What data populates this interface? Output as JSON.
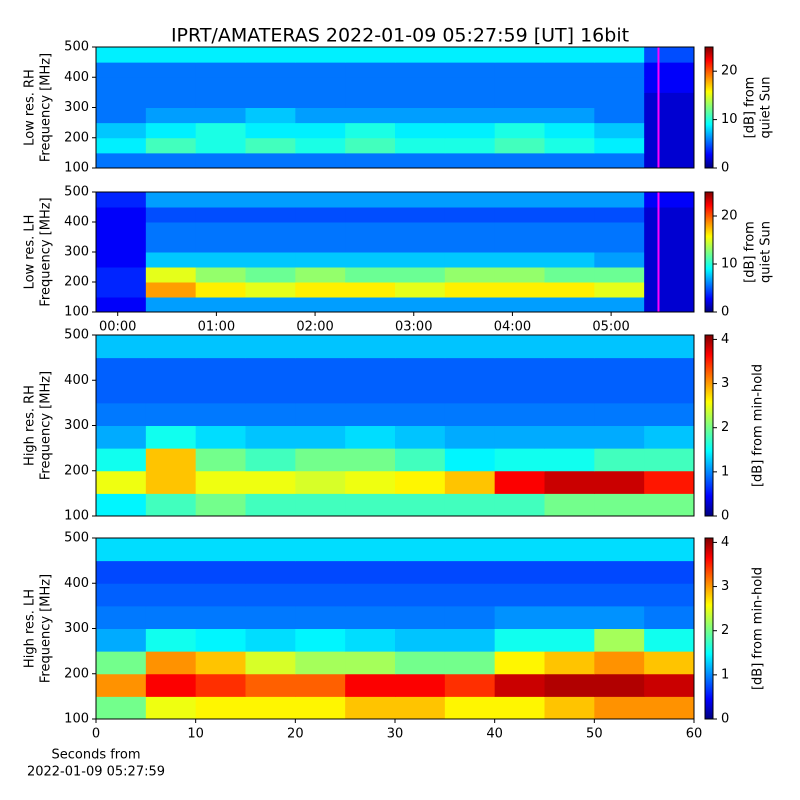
{
  "chart_data": [
    {
      "type": "heatmap",
      "title": "IPRT/AMATERAS 2022-01-09 05:27:59 [UT]   16bit",
      "ylabel": [
        "Low res. RH",
        "Frequency [MHz]"
      ],
      "colorbar_label": [
        "[dB] from",
        "quiet Sun"
      ],
      "colormap": "jet",
      "xlim": [
        -0.22,
        5.84
      ],
      "ylim": [
        100,
        500
      ],
      "yticks": [
        100,
        200,
        300,
        400,
        500
      ],
      "clim": [
        0,
        25
      ],
      "cticks": [
        0,
        10,
        20
      ],
      "vline": {
        "x": 5.48,
        "color": "#ff00ff"
      },
      "z": [
        [
          6,
          6,
          6,
          6,
          6,
          6,
          6,
          6,
          6,
          6,
          6,
          2
        ],
        [
          9,
          11,
          10,
          11,
          10,
          11,
          10,
          10,
          11,
          10,
          9,
          2
        ],
        [
          8,
          9,
          10,
          9,
          9,
          10,
          9,
          9,
          10,
          9,
          8,
          2
        ],
        [
          6,
          7,
          7,
          8,
          7,
          7,
          7,
          7,
          7,
          7,
          6,
          2
        ],
        [
          6,
          6,
          6,
          6,
          6,
          6,
          6,
          6,
          6,
          6,
          6,
          2
        ],
        [
          6,
          6,
          6,
          6,
          6,
          6,
          6,
          6,
          6,
          6,
          6,
          3
        ],
        [
          6,
          6,
          6,
          6,
          6,
          6,
          6,
          6,
          6,
          6,
          6,
          3
        ],
        [
          9,
          9,
          9,
          9,
          9,
          9,
          9,
          9,
          9,
          9,
          9,
          5
        ]
      ]
    },
    {
      "type": "heatmap",
      "ylabel": [
        "Low res. LH",
        "Frequency [MHz]"
      ],
      "colorbar_label": [
        "[dB] from",
        "quiet Sun"
      ],
      "colormap": "jet",
      "xlim": [
        -0.22,
        5.84
      ],
      "ylim": [
        100,
        500
      ],
      "yticks": [
        100,
        200,
        300,
        400,
        500
      ],
      "xticks": [
        {
          "value": 0,
          "label": "00:00"
        },
        {
          "value": 1,
          "label": "01:00"
        },
        {
          "value": 2,
          "label": "02:00"
        },
        {
          "value": 3,
          "label": "03:00"
        },
        {
          "value": 4,
          "label": "04:00"
        },
        {
          "value": 5,
          "label": "05:00"
        }
      ],
      "clim": [
        0,
        25
      ],
      "cticks": [
        0,
        10,
        20
      ],
      "vline": {
        "x": 5.48,
        "color": "#ff00ff"
      },
      "z": [
        [
          3,
          7,
          7,
          7,
          7,
          7,
          7,
          7,
          7,
          7,
          7,
          2
        ],
        [
          4,
          18,
          16,
          15,
          16,
          16,
          15,
          16,
          16,
          16,
          15,
          2
        ],
        [
          4,
          15,
          13,
          12,
          13,
          12,
          12,
          13,
          13,
          12,
          12,
          2
        ],
        [
          3,
          8,
          8,
          8,
          8,
          8,
          8,
          8,
          8,
          8,
          7,
          2
        ],
        [
          3,
          6,
          6,
          6,
          6,
          6,
          6,
          6,
          6,
          6,
          6,
          2
        ],
        [
          3,
          6,
          6,
          6,
          6,
          6,
          6,
          6,
          6,
          6,
          6,
          2
        ],
        [
          3,
          5,
          5,
          5,
          5,
          5,
          5,
          5,
          5,
          5,
          5,
          2
        ],
        [
          4,
          7,
          7,
          7,
          7,
          7,
          7,
          7,
          7,
          7,
          7,
          3
        ]
      ]
    },
    {
      "type": "heatmap",
      "ylabel": [
        "High res. RH",
        "Frequency [MHz]"
      ],
      "colorbar_label": [
        "[dB] from min-hold"
      ],
      "colormap": "jet",
      "xlim": [
        0,
        60
      ],
      "ylim": [
        100,
        500
      ],
      "yticks": [
        100,
        200,
        300,
        400,
        500
      ],
      "clim": [
        0,
        4.1
      ],
      "cticks": [
        0,
        1,
        2,
        3,
        4
      ],
      "z": [
        [
          1.5,
          1.8,
          2,
          1.8,
          1.8,
          1.8,
          1.8,
          1.8,
          1.8,
          2,
          2,
          2
        ],
        [
          2.5,
          2.8,
          2.5,
          2.5,
          2.4,
          2.5,
          2.6,
          2.8,
          3.6,
          3.8,
          3.8,
          3.5
        ],
        [
          1.6,
          2.8,
          2,
          1.8,
          2,
          2,
          1.8,
          1.5,
          1.6,
          1.6,
          1.8,
          1.8
        ],
        [
          1.2,
          1.6,
          1.4,
          1.3,
          1.3,
          1.4,
          1.3,
          1.2,
          1.2,
          1.2,
          1.2,
          1.3
        ],
        [
          1,
          1,
          1,
          1,
          1,
          1,
          1,
          1,
          1,
          1,
          1,
          1
        ],
        [
          0.9,
          0.9,
          0.9,
          0.9,
          0.9,
          0.9,
          0.9,
          0.9,
          0.9,
          0.9,
          0.9,
          0.9
        ],
        [
          0.9,
          0.9,
          0.9,
          0.9,
          0.9,
          0.9,
          0.9,
          0.9,
          0.9,
          0.9,
          0.9,
          0.9
        ],
        [
          1.3,
          1.3,
          1.3,
          1.3,
          1.3,
          1.3,
          1.3,
          1.3,
          1.3,
          1.3,
          1.3,
          1.3
        ]
      ]
    },
    {
      "type": "heatmap",
      "ylabel": [
        "High res. LH",
        "Frequency [MHz]"
      ],
      "colorbar_label": [
        "[dB] from min-hold"
      ],
      "colormap": "jet",
      "xlim": [
        0,
        60
      ],
      "ylim": [
        100,
        500
      ],
      "yticks": [
        100,
        200,
        300,
        400,
        500
      ],
      "xticks": [
        0,
        10,
        20,
        30,
        40,
        50,
        60
      ],
      "xlabel": [
        "Seconds from",
        "2022-01-09 05:27:59"
      ],
      "clim": [
        0,
        4.1
      ],
      "cticks": [
        0,
        1,
        2,
        3,
        4
      ],
      "z": [
        [
          2,
          2.5,
          2.6,
          2.6,
          2.6,
          2.8,
          2.8,
          2.6,
          2.6,
          2.8,
          3,
          3
        ],
        [
          3,
          3.6,
          3.4,
          3.2,
          3.2,
          3.6,
          3.6,
          3.4,
          3.8,
          3.9,
          3.9,
          3.8
        ],
        [
          2,
          3,
          2.8,
          2.4,
          2.2,
          2.2,
          2,
          2,
          2.6,
          2.8,
          3,
          2.8
        ],
        [
          1.2,
          1.6,
          1.5,
          1.4,
          1.5,
          1.4,
          1.3,
          1.3,
          1.6,
          1.6,
          2.2,
          1.6
        ],
        [
          1,
          1,
          1,
          1,
          1,
          1,
          1,
          1,
          1.1,
          1.1,
          1.1,
          1
        ],
        [
          0.9,
          0.9,
          0.9,
          0.9,
          0.9,
          0.9,
          0.9,
          0.9,
          0.9,
          0.9,
          0.9,
          0.9
        ],
        [
          0.8,
          0.8,
          0.8,
          0.8,
          0.8,
          0.8,
          0.8,
          0.8,
          0.8,
          0.8,
          0.8,
          0.8
        ],
        [
          1.4,
          1.4,
          1.4,
          1.4,
          1.4,
          1.4,
          1.4,
          1.4,
          1.4,
          1.4,
          1.4,
          1.4
        ]
      ]
    }
  ]
}
